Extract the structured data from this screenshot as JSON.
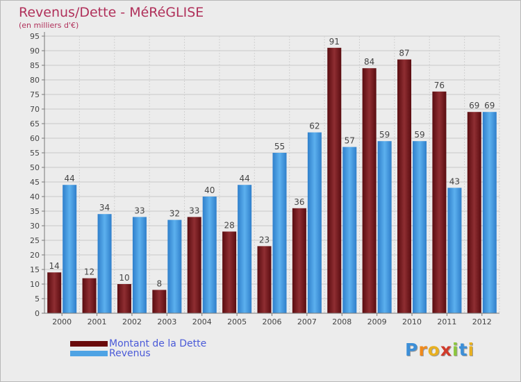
{
  "header": {
    "title": "Revenus/Dette - MéRéGLISE",
    "subtitle": "(en milliers d'€)"
  },
  "chart_data": {
    "type": "bar",
    "categories": [
      "2000",
      "2001",
      "2002",
      "2003",
      "2004",
      "2005",
      "2006",
      "2007",
      "2008",
      "2009",
      "2010",
      "2011",
      "2012"
    ],
    "series": [
      {
        "name": "Montant de la Dette",
        "color": "#8b2a2e",
        "values": [
          14,
          12,
          10,
          8,
          33,
          28,
          23,
          36,
          91,
          84,
          87,
          76,
          69
        ]
      },
      {
        "name": "Revenus",
        "color": "#4ea3e4",
        "values": [
          44,
          34,
          33,
          32,
          40,
          44,
          55,
          62,
          57,
          59,
          59,
          43,
          69
        ]
      }
    ],
    "ylim": [
      0,
      95
    ],
    "ytick_step": 5,
    "grid": true,
    "legend_position": "bottom-left"
  },
  "legend": {
    "items": [
      {
        "label": "Montant de la Dette",
        "color": "#6a0a0a"
      },
      {
        "label": "Revenus",
        "color": "#4ea3e4"
      }
    ]
  },
  "logo": {
    "letters": [
      "P",
      "r",
      "o",
      "x",
      "i",
      "t",
      "i"
    ],
    "colors": [
      "#3c8fd8",
      "#f08a1c",
      "#e8b020",
      "#d03a2a",
      "#8cc63e",
      "#3c8fd8",
      "#e8b020"
    ]
  }
}
